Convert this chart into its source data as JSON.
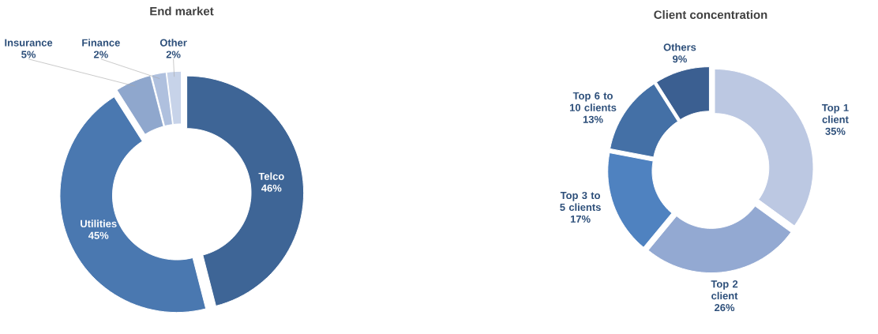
{
  "chart_data": [
    {
      "type": "donut",
      "title": "End market",
      "categories": [
        "Telco",
        "Utilities",
        "Insurance",
        "Finance",
        "Other"
      ],
      "values": [
        46,
        45,
        5,
        2,
        2
      ],
      "value_labels": [
        "46%",
        "45%",
        "5%",
        "2%",
        "2%"
      ],
      "colors": [
        "#3e6596",
        "#4a78b0",
        "#8fa7cd",
        "#afc0de",
        "#c7d3e9"
      ]
    },
    {
      "type": "donut",
      "title": "Client concentration",
      "categories": [
        "Top 1 client",
        "Top 2 client",
        "Top 3 to 5 clients",
        "Top 6 to 10 clients",
        "Others"
      ],
      "values": [
        35,
        26,
        17,
        13,
        9
      ],
      "value_labels": [
        "35%",
        "26%",
        "17%",
        "13%",
        "9%"
      ],
      "colors": [
        "#bcc8e2",
        "#93a9d2",
        "#4f82c0",
        "#4470a6",
        "#3b5f91"
      ]
    }
  ]
}
